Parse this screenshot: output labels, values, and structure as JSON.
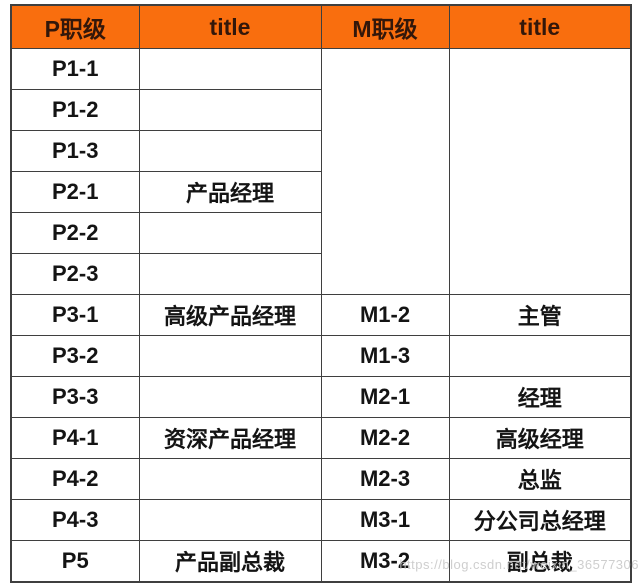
{
  "colors": {
    "accent": "#f96e0e",
    "grid": "#3f3f3f",
    "header_text": "#33170a",
    "body_text": "#141414",
    "watermark": "#c6c6c6",
    "background": "#ffffff"
  },
  "chart_data": {
    "type": "table",
    "title": "",
    "columns": [
      "P职级",
      "title",
      "M职级",
      "title"
    ],
    "m_merged_rows": 6,
    "rows": [
      [
        "P1-1",
        "",
        "",
        ""
      ],
      [
        "P1-2",
        "",
        "",
        ""
      ],
      [
        "P1-3",
        "",
        "",
        ""
      ],
      [
        "P2-1",
        "产品经理",
        "",
        ""
      ],
      [
        "P2-2",
        "",
        "",
        ""
      ],
      [
        "P2-3",
        "",
        "",
        ""
      ],
      [
        "P3-1",
        "高级产品经理",
        "M1-2",
        "主管"
      ],
      [
        "P3-2",
        "",
        "M1-3",
        ""
      ],
      [
        "P3-3",
        "",
        "M2-1",
        "经理"
      ],
      [
        "P4-1",
        "资深产品经理",
        "M2-2",
        "高级经理"
      ],
      [
        "P4-2",
        "",
        "M2-3",
        "总监"
      ],
      [
        "P4-3",
        "",
        "M3-1",
        "分公司总经理"
      ],
      [
        "P5",
        "产品副总裁",
        "M3-2",
        "副总裁"
      ]
    ]
  },
  "watermark": {
    "text": "https://blog.csdn.net/weixin_36577306"
  }
}
